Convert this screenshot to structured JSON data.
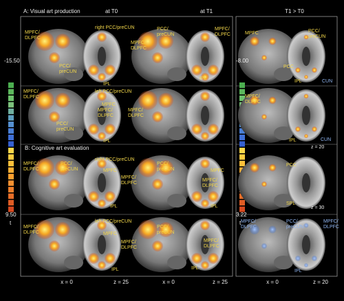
{
  "panel_a": "A: Visual art production",
  "panel_b": "B: Cognitive art evaluation",
  "columns": [
    "at T0",
    "at T1",
    "T1 > T0"
  ],
  "colorbars": [
    {
      "min": "-15.50",
      "max": "9.50",
      "unit": "t"
    },
    {
      "min": "-8.00",
      "max": "3.22",
      "unit": "t"
    }
  ],
  "annotations": [
    [
      "MPFC/",
      "DLPFC"
    ],
    [
      "right PCC/preCUN"
    ],
    [
      "PCC/",
      "preCUN"
    ],
    [
      "IPL"
    ],
    [
      "PCC/",
      "preCUN"
    ],
    [
      "MPFC/",
      "DLPFC"
    ],
    [
      "MPFC/",
      "DLPFC"
    ],
    [
      "IPL"
    ],
    [
      "MPFC"
    ],
    [
      "PCC/",
      "preCUN"
    ],
    [
      "PCC"
    ],
    [
      "IPL"
    ],
    [
      "CUN"
    ],
    [
      "MPFC/",
      "DLPFC"
    ],
    [
      "left PCC/preCUN"
    ],
    [
      "MPFC"
    ],
    [
      "PCC/",
      "preCUN"
    ],
    [
      "MPFC/",
      "DLPFC"
    ],
    [
      "MPFC/",
      "DLPFC"
    ],
    [
      "IPL"
    ],
    [
      "MPFC/",
      "DLPFC"
    ],
    [
      "IPL"
    ],
    [
      "CUN"
    ],
    [
      "z = 20"
    ],
    [
      "MPFC/",
      "DLPFC"
    ],
    [
      "PCC/",
      "preCUN"
    ],
    [
      "right PCC/preCUN"
    ],
    [
      "MPFC"
    ],
    [
      "MPFC/",
      "DLPFC"
    ],
    [
      "IPL"
    ],
    [
      "PCC/",
      "preCUN"
    ],
    [
      "MPFC"
    ],
    [
      "MPFC/",
      "DLPFC"
    ],
    [
      "IPL"
    ],
    [
      "PCC"
    ],
    [
      "SPL"
    ],
    [
      "z = 30"
    ],
    [
      "MPFC/",
      "DLPFC"
    ],
    [
      "left PCC/preCUN"
    ],
    [
      "MPFC"
    ],
    [
      "MPFC/",
      "DLPFC"
    ],
    [
      "IPL"
    ],
    [
      "PCC/",
      "preCUN"
    ],
    [
      "MPFC/",
      "DLPFC"
    ],
    [
      "IPL"
    ],
    [
      "MPFC/",
      "DLPFC"
    ],
    [
      "PCC/",
      "preCUN"
    ],
    [
      "MPFC/",
      "DLPFC"
    ],
    [
      "IPL"
    ]
  ],
  "coords": [
    "x = 0",
    "z =  25",
    "x = 0",
    "z = 25",
    "x = 0",
    "z = 20"
  ]
}
